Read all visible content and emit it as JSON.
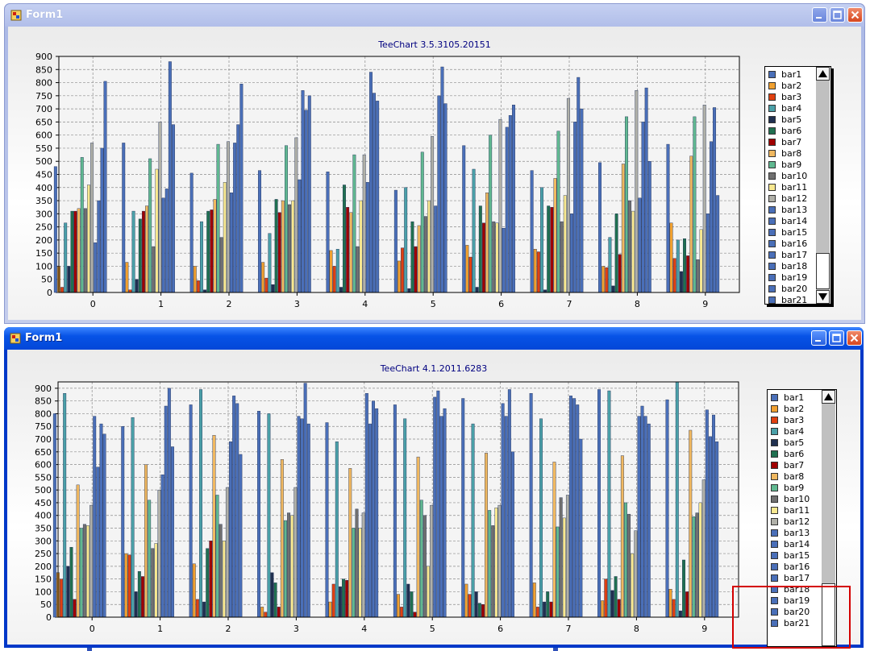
{
  "windows": [
    {
      "title": "Form1",
      "chart_title": "TeeChart 3.5.3105.20151",
      "legend_visible": [
        "bar1",
        "bar2",
        "bar3",
        "bar4",
        "bar5",
        "bar6",
        "bar7",
        "bar8",
        "bar9",
        "bar10",
        "bar11",
        "bar12",
        "bar13",
        "bar14",
        "bar15",
        "bar16",
        "bar17",
        "bar18",
        "bar19",
        "bar20",
        "bar21"
      ],
      "scroll_up_glyph": "▲",
      "scroll_down_glyph": "▼"
    },
    {
      "title": "Form1",
      "chart_title": "TeeChart 4.1.2011.6283",
      "legend_visible": [
        "bar1",
        "bar2",
        "bar3",
        "bar4",
        "bar5",
        "bar6",
        "bar7",
        "bar8",
        "bar9",
        "bar10",
        "bar11",
        "bar12",
        "bar13",
        "bar14",
        "bar15",
        "bar16",
        "bar17",
        "bar18",
        "bar19",
        "bar20",
        "bar21"
      ],
      "scroll_up_glyph": "▲"
    }
  ],
  "series_colors": [
    "#4a6fb8",
    "#f0a030",
    "#e04010",
    "#4aa0a8",
    "#203050",
    "#207050",
    "#a00000",
    "#f0b860",
    "#60b890",
    "#707070",
    "#f8e890",
    "#b0b0a8",
    "#4a6fb8",
    "#4a6fb8",
    "#4a6fb8",
    "#4a6fb8",
    "#4a6fb8",
    "#4a6fb8",
    "#4a6fb8",
    "#4a6fb8",
    "#4a6fb8"
  ],
  "icons": {
    "app": "form-app-icon",
    "minimize": "minimize-icon",
    "maximize": "maximize-icon",
    "close": "close-icon"
  },
  "chart_data": [
    {
      "type": "bar",
      "title": "TeeChart 3.5.3105.20151",
      "categories": [
        "0",
        "1",
        "2",
        "3",
        "4",
        "5",
        "6",
        "7",
        "8",
        "9"
      ],
      "ylim": [
        0,
        900
      ],
      "yticks": [
        0,
        50,
        100,
        150,
        200,
        250,
        300,
        350,
        400,
        450,
        500,
        550,
        600,
        650,
        700,
        750,
        800,
        850,
        900
      ],
      "grid": true,
      "legend_position": "right",
      "series": [
        {
          "name": "bar1",
          "values": [
            480,
            570,
            455,
            465,
            460,
            390,
            560,
            465,
            495,
            565
          ]
        },
        {
          "name": "bar2",
          "values": [
            100,
            115,
            100,
            115,
            160,
            120,
            180,
            165,
            100,
            265
          ]
        },
        {
          "name": "bar3",
          "values": [
            20,
            10,
            45,
            55,
            100,
            170,
            135,
            155,
            95,
            130
          ]
        },
        {
          "name": "bar4",
          "values": [
            265,
            310,
            270,
            225,
            165,
            400,
            470,
            400,
            210,
            200
          ]
        },
        {
          "name": "bar5",
          "values": [
            100,
            50,
            10,
            30,
            20,
            15,
            20,
            10,
            25,
            80
          ]
        },
        {
          "name": "bar6",
          "values": [
            310,
            280,
            310,
            355,
            410,
            270,
            330,
            330,
            300,
            205
          ]
        },
        {
          "name": "bar7",
          "values": [
            310,
            310,
            315,
            305,
            325,
            175,
            265,
            325,
            145,
            140
          ]
        },
        {
          "name": "bar8",
          "values": [
            320,
            330,
            355,
            350,
            305,
            255,
            380,
            435,
            490,
            520
          ]
        },
        {
          "name": "bar9",
          "values": [
            515,
            510,
            565,
            560,
            525,
            535,
            600,
            615,
            670,
            670
          ]
        },
        {
          "name": "bar10",
          "values": [
            320,
            175,
            210,
            335,
            175,
            290,
            270,
            270,
            350,
            125
          ]
        },
        {
          "name": "bar11",
          "values": [
            410,
            470,
            420,
            350,
            350,
            350,
            265,
            370,
            310,
            240
          ]
        },
        {
          "name": "bar12",
          "values": [
            570,
            650,
            575,
            590,
            525,
            595,
            660,
            740,
            770,
            715
          ]
        },
        {
          "name": "bar13",
          "values": [
            190,
            360,
            380,
            430,
            420,
            330,
            245,
            300,
            360,
            300
          ]
        },
        {
          "name": "bar14",
          "values": [
            350,
            395,
            570,
            770,
            840,
            750,
            630,
            650,
            650,
            575
          ]
        },
        {
          "name": "bar15",
          "values": [
            550,
            880,
            640,
            695,
            760,
            860,
            675,
            820,
            780,
            705
          ]
        },
        {
          "name": "bar16",
          "values": [
            805,
            640,
            795,
            750,
            730,
            720,
            715,
            700,
            500,
            370
          ]
        }
      ]
    },
    {
      "type": "bar",
      "title": "TeeChart 4.1.2011.6283",
      "categories": [
        "0",
        "1",
        "2",
        "3",
        "4",
        "5",
        "6",
        "7",
        "8",
        "9"
      ],
      "ylim": [
        0,
        925
      ],
      "yticks": [
        0,
        50,
        100,
        150,
        200,
        250,
        300,
        350,
        400,
        450,
        500,
        550,
        600,
        650,
        700,
        750,
        800,
        850,
        900
      ],
      "grid": true,
      "legend_position": "right",
      "series": [
        {
          "name": "bar1",
          "values": [
            800,
            750,
            835,
            810,
            765,
            835,
            860,
            880,
            895,
            855
          ]
        },
        {
          "name": "bar2",
          "values": [
            175,
            250,
            210,
            40,
            60,
            90,
            130,
            135,
            65,
            110
          ]
        },
        {
          "name": "bar3",
          "values": [
            150,
            245,
            70,
            20,
            130,
            40,
            90,
            40,
            150,
            70
          ]
        },
        {
          "name": "bar4",
          "values": [
            880,
            785,
            895,
            800,
            690,
            780,
            760,
            780,
            890,
            925
          ]
        },
        {
          "name": "bar5",
          "values": [
            200,
            100,
            60,
            175,
            120,
            130,
            100,
            60,
            105,
            25
          ]
        },
        {
          "name": "bar6",
          "values": [
            275,
            180,
            270,
            135,
            150,
            100,
            55,
            100,
            160,
            225
          ]
        },
        {
          "name": "bar7",
          "values": [
            70,
            160,
            300,
            40,
            145,
            20,
            50,
            60,
            70,
            100
          ]
        },
        {
          "name": "bar8",
          "values": [
            520,
            600,
            715,
            620,
            585,
            630,
            645,
            610,
            635,
            735
          ]
        },
        {
          "name": "bar9",
          "values": [
            350,
            460,
            480,
            380,
            350,
            460,
            420,
            355,
            450,
            395
          ]
        },
        {
          "name": "bar10",
          "values": [
            365,
            270,
            365,
            410,
            425,
            400,
            360,
            470,
            405,
            410
          ]
        },
        {
          "name": "bar11",
          "values": [
            360,
            290,
            300,
            400,
            350,
            200,
            430,
            390,
            250,
            450
          ]
        },
        {
          "name": "bar12",
          "values": [
            440,
            500,
            510,
            510,
            410,
            440,
            440,
            480,
            340,
            540
          ]
        },
        {
          "name": "bar13",
          "values": [
            790,
            560,
            690,
            790,
            880,
            865,
            840,
            870,
            790,
            815
          ]
        },
        {
          "name": "bar14",
          "values": [
            590,
            830,
            870,
            780,
            760,
            890,
            790,
            860,
            830,
            710
          ]
        },
        {
          "name": "bar15",
          "values": [
            760,
            900,
            840,
            920,
            850,
            790,
            895,
            835,
            790,
            795
          ]
        },
        {
          "name": "bar16",
          "values": [
            720,
            670,
            640,
            760,
            820,
            820,
            650,
            700,
            760,
            690
          ]
        }
      ]
    }
  ]
}
